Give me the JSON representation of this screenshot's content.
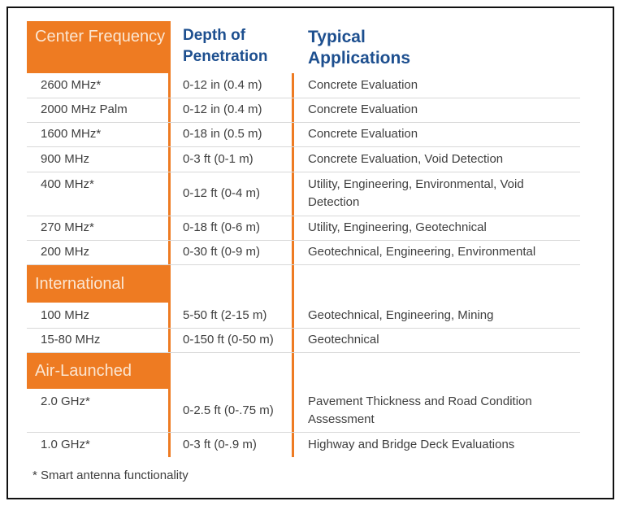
{
  "headers": {
    "frequency": "Center Frequency",
    "depth": "Depth of Penetration",
    "applications": "Typical Applications"
  },
  "sections": {
    "international": "International",
    "air_launched": "Air-Launched"
  },
  "rows": [
    {
      "frequency": "2600 MHz*",
      "depth": "0-12 in (0.4 m)",
      "applications": "Concrete Evaluation"
    },
    {
      "frequency": "2000 MHz Palm",
      "depth": "0-12 in (0.4 m)",
      "applications": "Concrete Evaluation"
    },
    {
      "frequency": "1600 MHz*",
      "depth": "0-18 in (0.5 m)",
      "applications": "Concrete Evaluation"
    },
    {
      "frequency": "900 MHz",
      "depth": "0-3 ft (0-1 m)",
      "applications": "Concrete Evaluation, Void Detection"
    },
    {
      "frequency": "400 MHz*",
      "depth": "0-12 ft (0-4 m)",
      "applications": "Utility, Engineering, Environmental, Void Detection"
    },
    {
      "frequency": "270 MHz*",
      "depth": "0-18 ft (0-6 m)",
      "applications": "Utility, Engineering, Geotechnical"
    },
    {
      "frequency": "200 MHz",
      "depth": "0-30 ft (0-9 m)",
      "applications": "Geotechnical, Engineering, Environmental"
    },
    {
      "frequency": "100 MHz",
      "depth": "5-50 ft (2-15 m)",
      "applications": "Geotechnical, Engineering, Mining"
    },
    {
      "frequency": "15-80 MHz",
      "depth": "0-150 ft (0-50 m)",
      "applications": "Geotechnical"
    },
    {
      "frequency": "2.0 GHz*",
      "depth": "0-2.5 ft (0-.75 m)",
      "applications": "Pavement Thickness and Road Condition Assessment"
    },
    {
      "frequency": "1.0 GHz*",
      "depth": "0-3 ft (0-.9 m)",
      "applications": "Highway and Bridge Deck Evaluations"
    }
  ],
  "footnote": "* Smart antenna functionality",
  "colors": {
    "accent": "#ee7b22",
    "header_text": "#1d4f8f"
  }
}
